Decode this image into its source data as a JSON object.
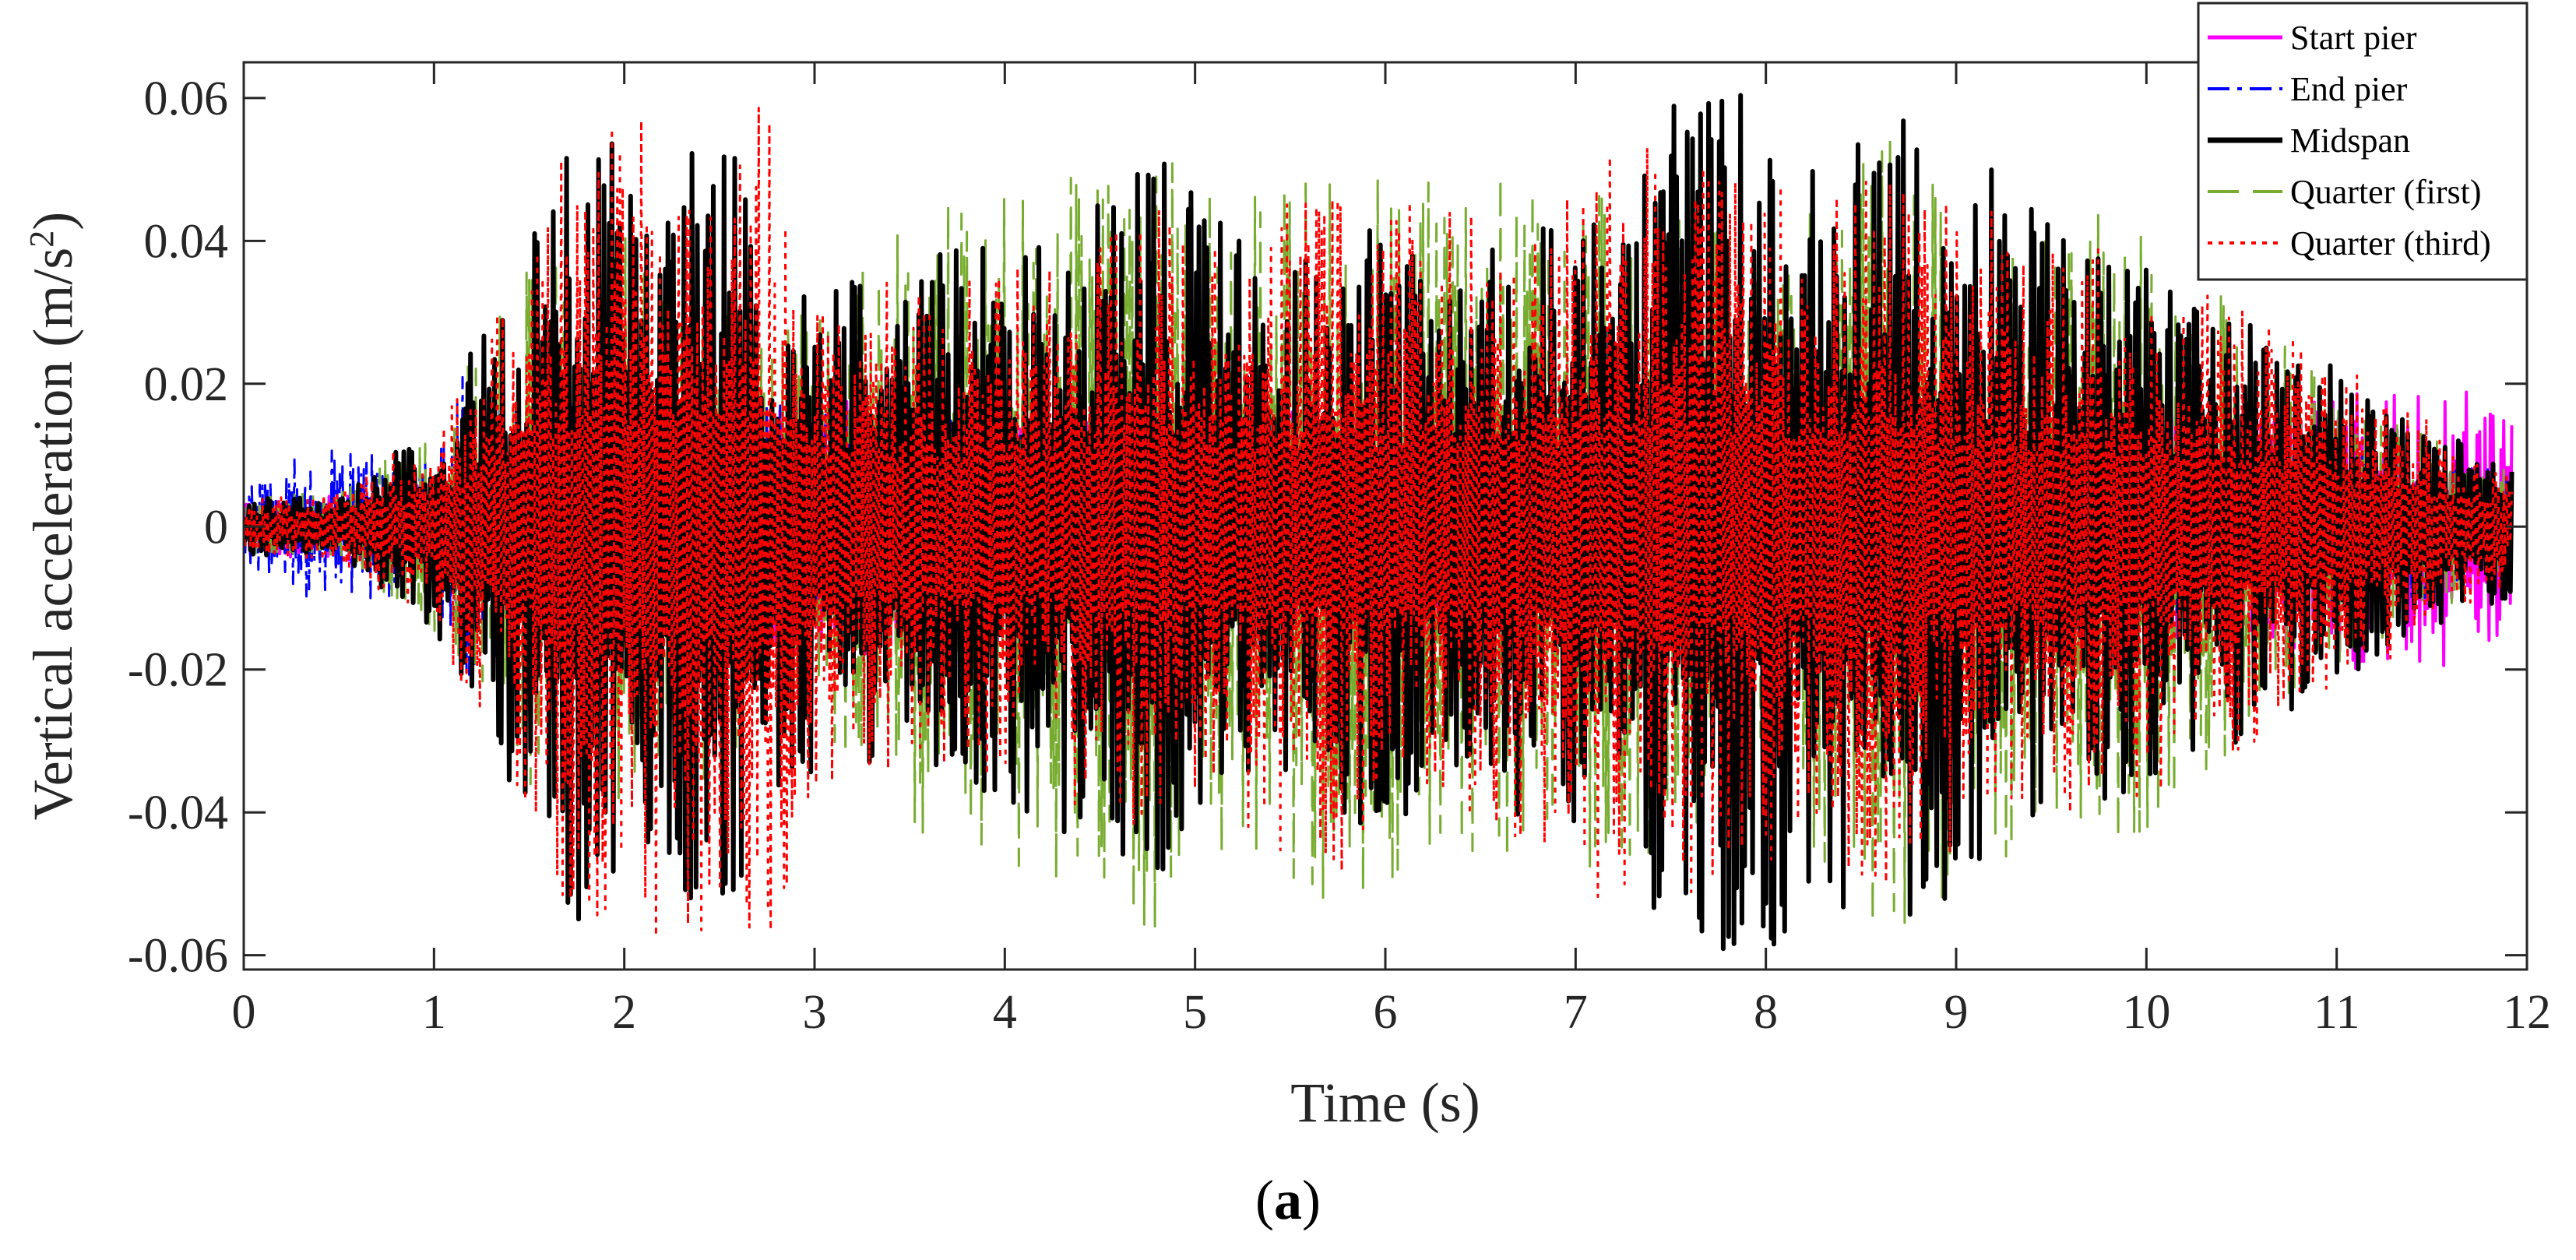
{
  "chart_data": {
    "type": "line",
    "xlabel": "Time (s)",
    "ylabel": "Vertical acceleration (m/s",
    "ylabel_sup": "2",
    "ylabel_tail": ")",
    "xlim": [
      0,
      12
    ],
    "ylim": [
      -0.062,
      0.065
    ],
    "xticks": [
      0,
      1,
      2,
      3,
      4,
      5,
      6,
      7,
      8,
      9,
      10,
      11,
      12
    ],
    "xtick_labels": [
      "0",
      "1",
      "2",
      "3",
      "4",
      "5",
      "6",
      "7",
      "8",
      "9",
      "10",
      "11",
      "12"
    ],
    "yticks": [
      -0.06,
      -0.04,
      -0.02,
      0,
      0.02,
      0.04,
      0.06
    ],
    "ytick_labels": [
      "-0.06",
      "-0.04",
      "-0.02",
      "0",
      "0.02",
      "0.04",
      "0.06"
    ],
    "grid": false,
    "legend_position": "top-right",
    "caption_bold": "a",
    "caption_prefix": "(",
    "caption_suffix": ")",
    "series": [
      {
        "name": "Start pier",
        "color": "#ff00ff",
        "dash": "solid",
        "x": [
          0,
          0.5,
          1,
          1.5,
          2,
          2.5,
          3,
          3.5,
          4,
          4.5,
          5,
          5.5,
          6,
          6.5,
          7,
          7.5,
          8,
          8.5,
          9,
          9.5,
          10,
          10.5,
          11,
          11.5,
          11.7,
          11.9
        ],
        "envelope": [
          0.004,
          0.005,
          0.006,
          0.012,
          0.015,
          0.017,
          0.018,
          0.018,
          0.017,
          0.017,
          0.017,
          0.017,
          0.016,
          0.015,
          0.016,
          0.017,
          0.016,
          0.015,
          0.016,
          0.015,
          0.016,
          0.016,
          0.02,
          0.02,
          0.019,
          0.015
        ]
      },
      {
        "name": "End pier",
        "color": "#0000ff",
        "dash": "dashdot",
        "x": [
          0,
          0.25,
          0.55,
          1,
          1.15,
          2,
          3,
          4,
          5,
          6,
          7,
          8,
          9,
          10,
          11,
          11.9
        ],
        "envelope": [
          0.005,
          0.01,
          0.011,
          0.01,
          0.022,
          0.015,
          0.018,
          0.015,
          0.013,
          0.013,
          0.013,
          0.012,
          0.012,
          0.012,
          0.012,
          0.008
        ]
      },
      {
        "name": "Midspan",
        "color": "#000000",
        "dash": "solid",
        "x": [
          0,
          0.5,
          1,
          1.3,
          1.65,
          1.77,
          2.2,
          2.42,
          3,
          3.5,
          4.2,
          4.77,
          5.3,
          6,
          6.5,
          7.2,
          7.62,
          8.55,
          8.8,
          9.4,
          10,
          10.5,
          11,
          11.5,
          11.9
        ],
        "envelope": [
          0.004,
          0.004,
          0.015,
          0.032,
          0.048,
          0.061,
          0.043,
          0.06,
          0.034,
          0.037,
          0.042,
          0.054,
          0.04,
          0.042,
          0.04,
          0.044,
          0.064,
          0.053,
          0.059,
          0.045,
          0.036,
          0.03,
          0.022,
          0.014,
          0.01
        ]
      },
      {
        "name": "Quarter (first)",
        "color": "#77ac30",
        "dash": "dashed",
        "x": [
          0,
          0.5,
          1,
          1.5,
          2,
          2.5,
          3,
          3.5,
          4.15,
          4.65,
          4.77,
          5.2,
          5.6,
          6.1,
          6.5,
          6.85,
          7.3,
          8,
          8.55,
          8.7,
          9.1,
          9.6,
          10,
          10.5,
          11,
          11.9
        ],
        "envelope": [
          0.004,
          0.005,
          0.015,
          0.038,
          0.041,
          0.035,
          0.03,
          0.046,
          0.048,
          0.053,
          0.058,
          0.047,
          0.053,
          0.052,
          0.05,
          0.047,
          0.05,
          0.04,
          0.055,
          0.06,
          0.047,
          0.045,
          0.045,
          0.03,
          0.02,
          0.008
        ]
      },
      {
        "name": "Quarter (third)",
        "color": "#ff0000",
        "dash": "dotted",
        "x": [
          0,
          0.5,
          1,
          1.5,
          1.65,
          1.8,
          2.28,
          2.7,
          3.2,
          3.7,
          4.3,
          4.7,
          5.3,
          5.55,
          6.1,
          6.6,
          7.3,
          8,
          8.7,
          9.1,
          9.5,
          10,
          10.6,
          11.2,
          11.9
        ],
        "envelope": [
          0.004,
          0.005,
          0.015,
          0.04,
          0.052,
          0.055,
          0.059,
          0.061,
          0.034,
          0.035,
          0.038,
          0.045,
          0.042,
          0.05,
          0.046,
          0.044,
          0.055,
          0.048,
          0.05,
          0.045,
          0.041,
          0.038,
          0.03,
          0.02,
          0.008
        ]
      }
    ]
  }
}
